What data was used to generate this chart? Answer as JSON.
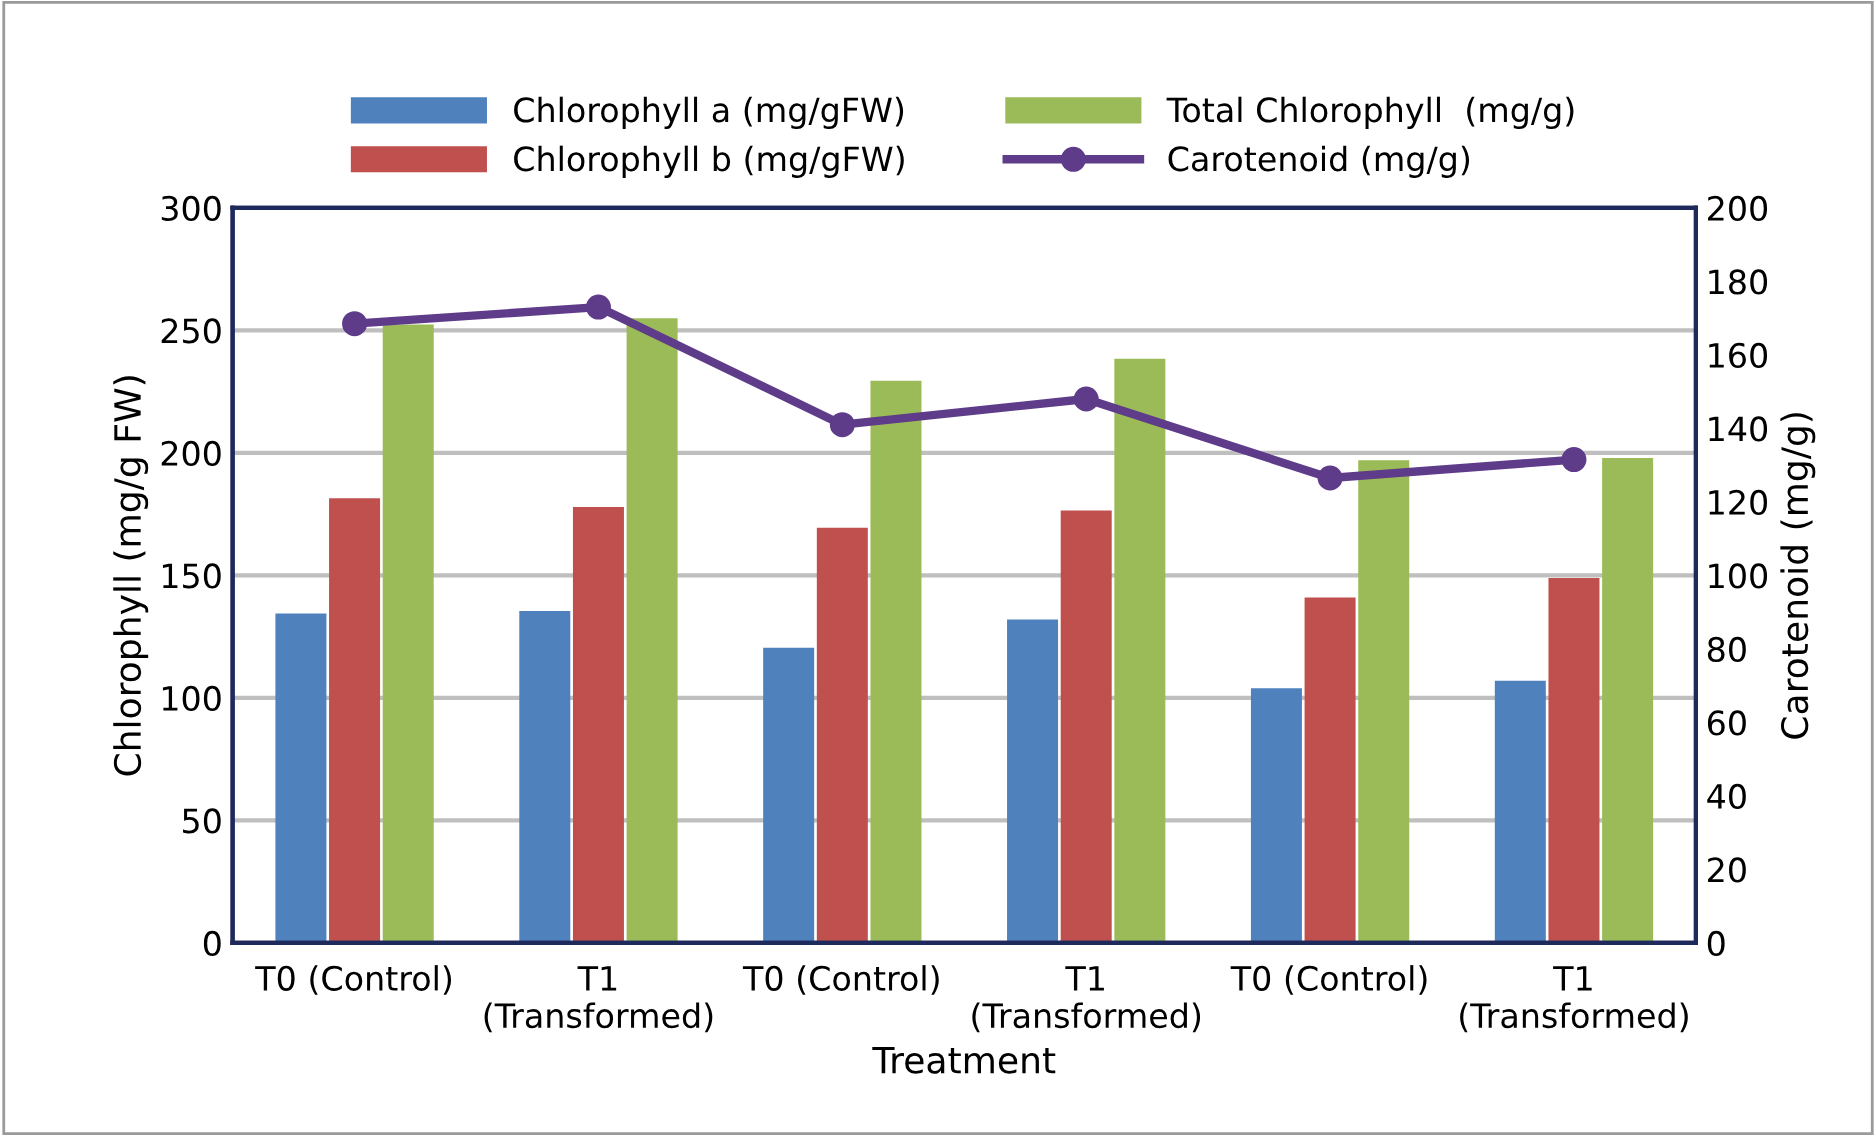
{
  "chart_data": {
    "type": "bar",
    "categories": [
      "T0 (Control)",
      "T1\n(Transformed)",
      "T0 (Control)",
      "T1\n(Transformed)",
      "T0 (Control)",
      "T1\n(Transformed)"
    ],
    "series": [
      {
        "name": "Chlorophyll a (mg/gFW)",
        "color": "#4f81bd",
        "values": [
          134,
          135,
          120,
          131.5,
          103.5,
          106.5
        ]
      },
      {
        "name": "Chlorophyll b (mg/gFW)",
        "color": "#c0504d",
        "values": [
          181,
          177.5,
          169,
          176,
          140.5,
          148.5
        ]
      },
      {
        "name": "Total Chlorophyll  (mg/g)",
        "color": "#9bbb59",
        "values": [
          252,
          254.5,
          229,
          238,
          196.5,
          197.5
        ]
      },
      {
        "name": "Carotenoid (mg/g)",
        "type": "line",
        "axis": "y2",
        "color": "#5f3c8a",
        "marker": "circle",
        "values": [
          168.5,
          173,
          141,
          148,
          126.5,
          131.5
        ]
      }
    ],
    "xlabel": "Treatment",
    "ylabel": "Chlorophyll (mg/g FW)",
    "y2label": "Carotenoid (mg/g)",
    "ylim": [
      0,
      300
    ],
    "yticks": [
      0,
      50,
      100,
      150,
      200,
      250,
      300
    ],
    "y2lim": [
      0,
      200
    ],
    "y2ticks": [
      0,
      20,
      40,
      60,
      80,
      100,
      120,
      140,
      160,
      180,
      200
    ],
    "grid": "y",
    "legend": "top"
  }
}
